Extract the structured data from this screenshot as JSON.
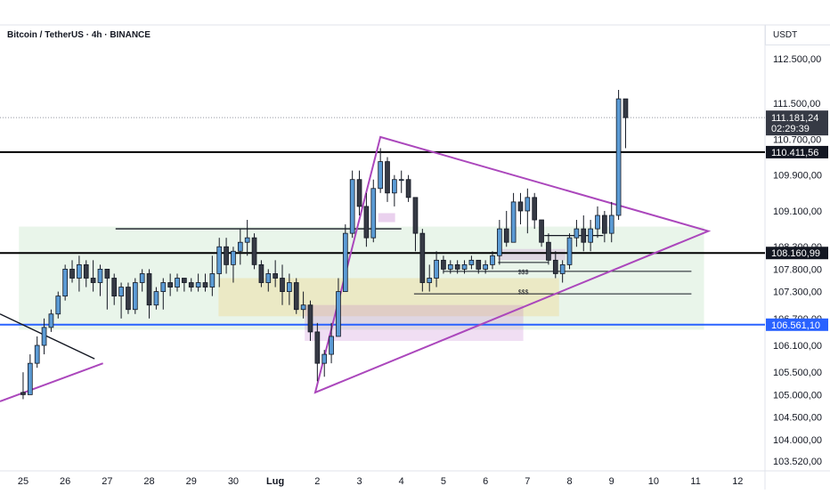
{
  "chart_data": {
    "type": "candlestick",
    "title": "Bitcoin / TetherUS · 4h · BINANCE",
    "unit": "USDT",
    "ylim": [
      103300,
      113250
    ],
    "y_ticks": [
      {
        "value": 112500,
        "label": "112.500,00"
      },
      {
        "value": 111500,
        "label": "111.500,00"
      },
      {
        "value": 110700,
        "label": "110.700,00"
      },
      {
        "value": 109900,
        "label": "109.900,00"
      },
      {
        "value": 109100,
        "label": "109.100,00"
      },
      {
        "value": 108300,
        "label": "108.300,00"
      },
      {
        "value": 107800,
        "label": "107.800,00"
      },
      {
        "value": 107300,
        "label": "107.300,00"
      },
      {
        "value": 106700,
        "label": "106.700,00"
      },
      {
        "value": 106100,
        "label": "106.100,00"
      },
      {
        "value": 105500,
        "label": "105.500,00"
      },
      {
        "value": 105000,
        "label": "105.000,00"
      },
      {
        "value": 104500,
        "label": "104.500,00"
      },
      {
        "value": 104000,
        "label": "104.000,00"
      },
      {
        "value": 103520,
        "label": "103.520,00"
      }
    ],
    "x_ticks": [
      {
        "day": 0,
        "label": "25"
      },
      {
        "day": 1,
        "label": "26"
      },
      {
        "day": 2,
        "label": "27"
      },
      {
        "day": 3,
        "label": "28"
      },
      {
        "day": 4,
        "label": "29"
      },
      {
        "day": 5,
        "label": "30"
      },
      {
        "day": 6,
        "label": "Lug"
      },
      {
        "day": 7,
        "label": "2"
      },
      {
        "day": 8,
        "label": "3"
      },
      {
        "day": 9,
        "label": "4"
      },
      {
        "day": 10,
        "label": "5"
      },
      {
        "day": 11,
        "label": "6"
      },
      {
        "day": 12,
        "label": "7"
      },
      {
        "day": 13,
        "label": "8"
      },
      {
        "day": 14,
        "label": "9"
      },
      {
        "day": 15,
        "label": "10"
      },
      {
        "day": 16,
        "label": "11"
      },
      {
        "day": 17,
        "label": "12"
      }
    ],
    "x_range_days": [
      -0.55,
      17.65
    ],
    "candles_per_day": 6,
    "candle_open_price": 105050,
    "candles": [
      [
        105500,
        104900,
        105000
      ],
      [
        105900,
        105100,
        105700
      ],
      [
        106300,
        105600,
        106100
      ],
      [
        106700,
        105900,
        106500
      ],
      [
        106900,
        106400,
        106800
      ],
      [
        107300,
        106700,
        107200
      ],
      [
        107900,
        107100,
        107800
      ],
      [
        108000,
        107500,
        107600
      ],
      [
        108100,
        107300,
        107900
      ],
      [
        108000,
        107400,
        107600
      ],
      [
        108000,
        107300,
        107500
      ],
      [
        107900,
        107200,
        107800
      ],
      [
        107800,
        106900,
        107600
      ],
      [
        107700,
        107000,
        107200
      ],
      [
        107500,
        106700,
        107400
      ],
      [
        107500,
        106800,
        106900
      ],
      [
        107600,
        106800,
        107500
      ],
      [
        107800,
        107300,
        107700
      ],
      [
        107800,
        106700,
        107000
      ],
      [
        107400,
        106900,
        107300
      ],
      [
        107600,
        106900,
        107500
      ],
      [
        107700,
        107200,
        107400
      ],
      [
        107700,
        107300,
        107600
      ],
      [
        107600,
        107300,
        107500
      ],
      [
        107600,
        107300,
        107400
      ],
      [
        107700,
        107300,
        107500
      ],
      [
        107700,
        107300,
        107400
      ],
      [
        108100,
        107200,
        107700
      ],
      [
        108500,
        107400,
        108300
      ],
      [
        108500,
        107700,
        107900
      ],
      [
        108300,
        107500,
        108200
      ],
      [
        108700,
        107900,
        108400
      ],
      [
        108900,
        108100,
        108500
      ],
      [
        108600,
        107800,
        107900
      ],
      [
        108000,
        107400,
        107500
      ],
      [
        107800,
        107300,
        107700
      ],
      [
        108000,
        107400,
        107600
      ],
      [
        107900,
        107000,
        107300
      ],
      [
        107700,
        107000,
        107500
      ],
      [
        107600,
        106800,
        106900
      ],
      [
        107300,
        106700,
        107000
      ],
      [
        107100,
        106200,
        106400
      ],
      [
        106600,
        105300,
        105700
      ],
      [
        106000,
        105400,
        105900
      ],
      [
        106600,
        105700,
        106300
      ],
      [
        107600,
        106300,
        107300
      ],
      [
        108800,
        107300,
        108600
      ],
      [
        110000,
        108500,
        109800
      ],
      [
        110000,
        109000,
        109200
      ],
      [
        109500,
        108300,
        108500
      ],
      [
        109800,
        108400,
        109600
      ],
      [
        110500,
        109500,
        110200
      ],
      [
        110300,
        109300,
        109500
      ],
      [
        109900,
        109200,
        109800
      ],
      [
        110000,
        109500,
        109800
      ],
      [
        109900,
        109300,
        109400
      ],
      [
        109400,
        108200,
        108600
      ],
      [
        108700,
        107300,
        107500
      ],
      [
        107900,
        107300,
        107600
      ],
      [
        108200,
        107400,
        108000
      ],
      [
        108100,
        107700,
        107800
      ],
      [
        108000,
        107700,
        107900
      ],
      [
        108000,
        107700,
        107800
      ],
      [
        108000,
        107700,
        107900
      ],
      [
        108100,
        107800,
        108000
      ],
      [
        108000,
        107700,
        107800
      ],
      [
        108000,
        107700,
        107900
      ],
      [
        108200,
        107800,
        108100
      ],
      [
        108900,
        107900,
        108700
      ],
      [
        109100,
        108300,
        108400
      ],
      [
        109500,
        108400,
        109300
      ],
      [
        109500,
        108800,
        109100
      ],
      [
        109600,
        108600,
        109400
      ],
      [
        109500,
        108700,
        108900
      ],
      [
        108900,
        108300,
        108400
      ],
      [
        108600,
        107900,
        108000
      ],
      [
        108200,
        107600,
        107700
      ],
      [
        108000,
        107500,
        107900
      ],
      [
        108600,
        107800,
        108500
      ],
      [
        108900,
        108300,
        108700
      ],
      [
        109000,
        108200,
        108400
      ],
      [
        108900,
        108200,
        108700
      ],
      [
        109200,
        108500,
        109000
      ],
      [
        109100,
        108400,
        108600
      ],
      [
        109300,
        108400,
        109000
      ],
      [
        111800,
        108900,
        111600
      ],
      [
        111600,
        110500,
        111181
      ]
    ],
    "horizontal_levels": [
      {
        "value": 110411.56,
        "label": "110.411,56",
        "color": "#000000"
      },
      {
        "value": 108160.99,
        "label": "108.160,99",
        "color": "#000000"
      },
      {
        "value": 106561.1,
        "label": "106.561,10",
        "color": "#2962ff"
      }
    ],
    "current_price": {
      "value": 111181.24,
      "label": "111.181,24",
      "countdown": "02:29:39"
    },
    "annotations": [
      {
        "text": "$$$",
        "day": 11.9,
        "value": 107750
      },
      {
        "text": "$$$",
        "day": 11.9,
        "value": 107300
      }
    ],
    "bull_color": "#5b9bd5",
    "bear_color": "#363a45",
    "wick_color": "#131722"
  }
}
